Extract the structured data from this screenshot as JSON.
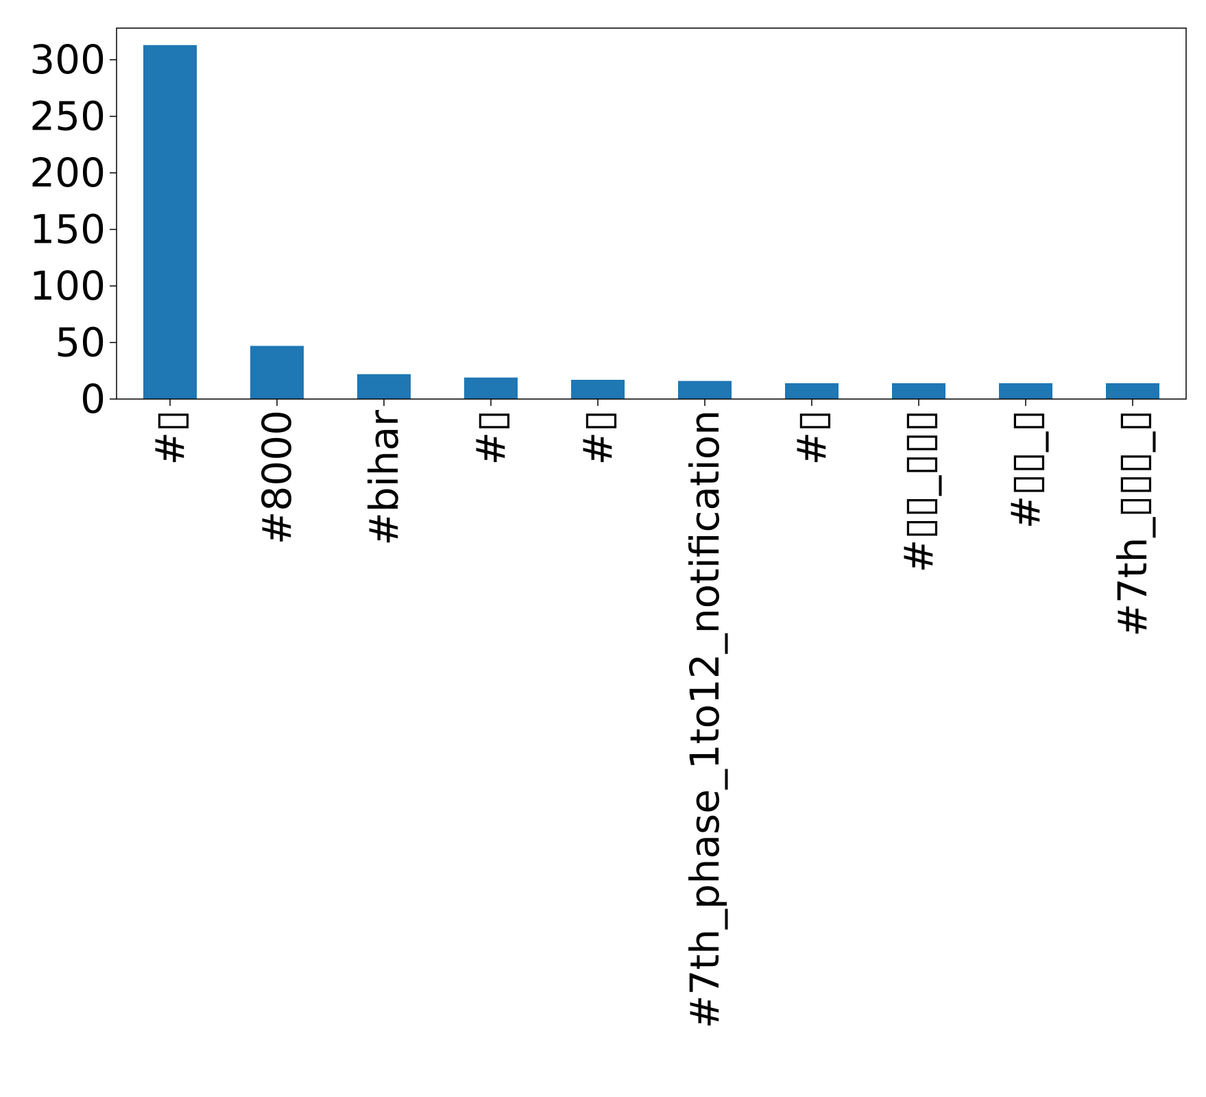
{
  "chart_data": {
    "type": "bar",
    "title": "",
    "xlabel": "",
    "ylabel": "",
    "categories": [
      "#▯",
      "#8000",
      "#bihar",
      "#▯",
      "#▯",
      "#7th_phase_1to12_notification",
      "#▯",
      "#▯▯_▯▯▯",
      "#▯▯_▯",
      "#7th_▯▯▯_▯"
    ],
    "series": [
      {
        "values": [
          313,
          47,
          22,
          19,
          17,
          16,
          14,
          14,
          14,
          14
        ],
        "color": "#1f77b4"
      }
    ],
    "ylim": [
      0,
      328
    ],
    "yticks": [
      0,
      50,
      100,
      150,
      200,
      250,
      300
    ],
    "grid": false,
    "legend": "none"
  }
}
